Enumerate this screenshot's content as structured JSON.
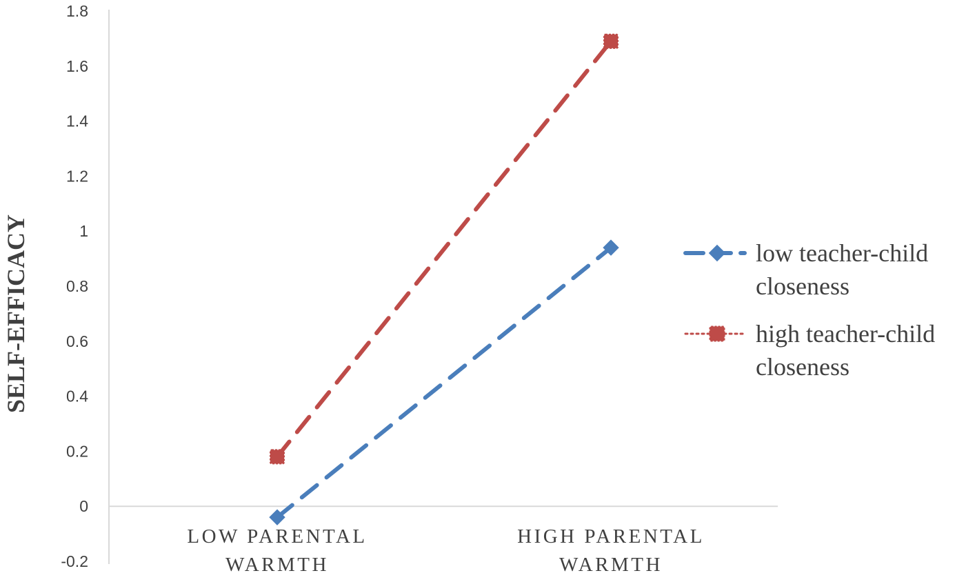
{
  "chart_data": {
    "type": "line",
    "title": "",
    "xlabel": "",
    "ylabel": "SELF-EFFICACY",
    "categories": [
      [
        "LOW PARENTAL",
        "WARMTH"
      ],
      [
        "HIGH PARENTAL",
        "WARMTH"
      ]
    ],
    "ylim": [
      -0.2,
      1.8
    ],
    "yticks": [
      -0.2,
      0,
      0.2,
      0.4,
      0.6,
      0.8,
      1,
      1.2,
      1.4,
      1.6,
      1.8
    ],
    "grid": false,
    "legend_position": "right",
    "series": [
      {
        "name_lines": [
          "low teacher-child",
          "closeness"
        ],
        "values": [
          -0.04,
          0.94
        ],
        "color": "#4a7ebb",
        "marker": "diamond",
        "line_style": "dashed"
      },
      {
        "name_lines": [
          "high teacher-child",
          "closeness"
        ],
        "values": [
          0.18,
          1.69
        ],
        "color": "#be4b48",
        "marker": "square",
        "line_style": "dashed",
        "legend_line_style": "dotted"
      }
    ]
  }
}
